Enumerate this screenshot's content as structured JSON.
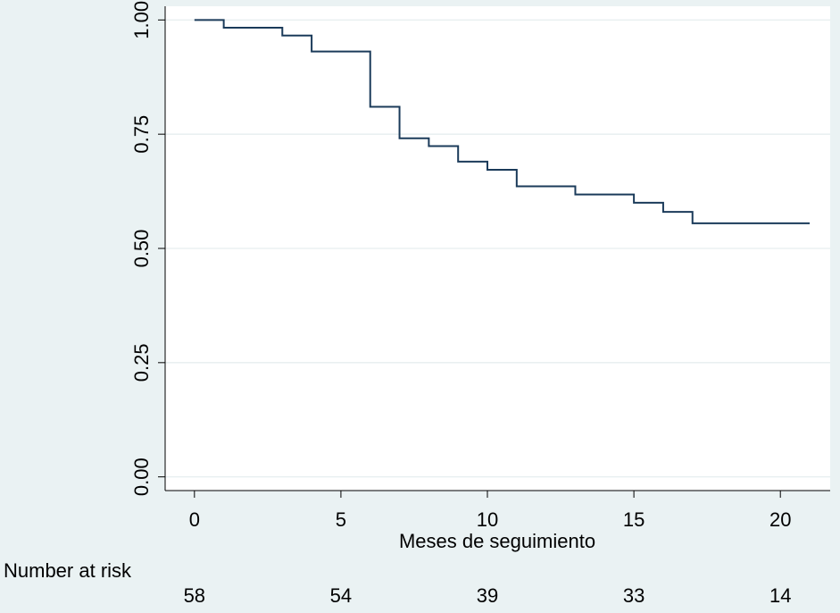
{
  "chart_data": {
    "type": "line",
    "title": "",
    "xlabel": "Meses de seguimiento",
    "ylabel": "",
    "xlim": [
      -1,
      21.7
    ],
    "ylim": [
      -0.03,
      1.03
    ],
    "x_ticks": [
      0,
      5,
      10,
      15,
      20
    ],
    "x_tick_labels": [
      "0",
      "5",
      "10",
      "15",
      "20"
    ],
    "y_ticks": [
      0,
      0.25,
      0.5,
      0.75,
      1
    ],
    "y_tick_labels": [
      "0.00",
      "0.25",
      "0.50",
      "0.75",
      "1.00"
    ],
    "grid": true,
    "step": true,
    "series": [
      {
        "x": [
          0,
          1,
          3,
          4,
          6,
          7,
          8,
          9,
          10,
          11,
          13,
          15,
          16,
          17,
          21
        ],
        "y": [
          1.0,
          0.983,
          0.966,
          0.931,
          0.81,
          0.741,
          0.724,
          0.69,
          0.672,
          0.636,
          0.618,
          0.6,
          0.58,
          0.555,
          0.555
        ],
        "color": "#1b3b5a"
      }
    ],
    "risk_table": {
      "label": "Number at risk",
      "times": [
        0,
        5,
        10,
        15,
        20
      ],
      "counts": [
        "58",
        "54",
        "39",
        "33",
        "14"
      ]
    },
    "colors": {
      "background": "#eaf2f3",
      "plot_area": "#ffffff",
      "grid": "#eaf2f3",
      "axis": "#000000"
    }
  }
}
